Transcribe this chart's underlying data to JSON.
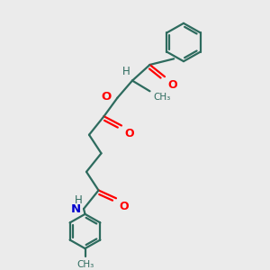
{
  "bg_color": "#ebebeb",
  "bond_color": "#2d6b5e",
  "O_color": "#ff0000",
  "N_color": "#0000cd",
  "H_color": "#2d6b5e",
  "line_width": 1.6,
  "fig_width": 3.0,
  "fig_height": 3.0,
  "dpi": 100,
  "xlim": [
    0,
    10
  ],
  "ylim": [
    0,
    10
  ]
}
